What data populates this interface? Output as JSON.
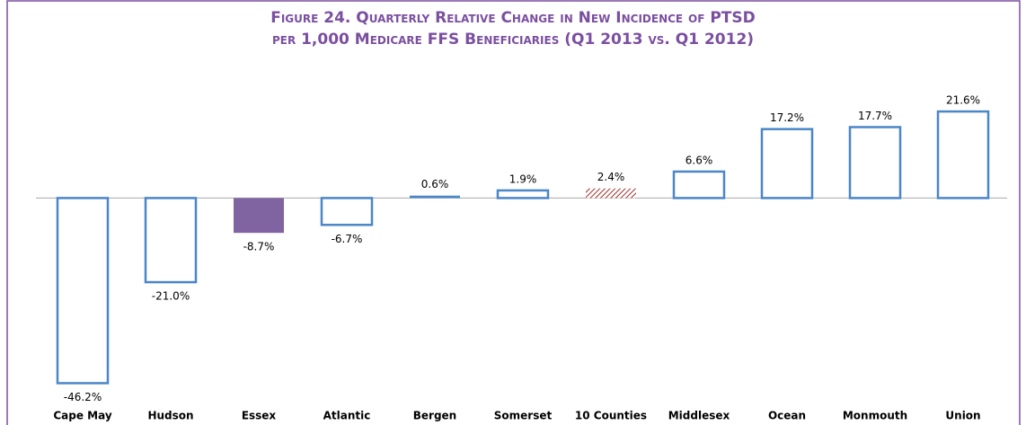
{
  "chart_data": {
    "type": "bar",
    "title": [
      "Figure 24. Quarterly Relative Change in New Incidence of PTSD",
      "per 1,000 Medicare FFS Beneficiaries (Q1 2013 vs. Q1 2012)"
    ],
    "categories": [
      "Cape May",
      "Hudson",
      "Essex",
      "Atlantic",
      "Bergen",
      "Somerset",
      "10 Counties",
      "Middlesex",
      "Ocean",
      "Monmouth",
      "Union"
    ],
    "values": [
      -46.2,
      -21.0,
      -8.7,
      -6.7,
      0.6,
      1.9,
      2.4,
      6.6,
      17.2,
      17.7,
      21.6
    ],
    "value_labels": [
      "-46.2%",
      "-21.0%",
      "-8.7%",
      "-6.7%",
      "0.6%",
      "1.9%",
      "2.4%",
      "6.6%",
      "17.2%",
      "17.7%",
      "21.6%"
    ],
    "colors": [
      "#4a86c8",
      "#4a86c8",
      "#8064a2",
      "#4a86c8",
      "#4a86c8",
      "#4a86c8",
      "#a0302a",
      "#4a86c8",
      "#4a86c8",
      "#4a86c8",
      "#4a86c8"
    ],
    "fills": [
      "outline",
      "outline",
      "solid",
      "outline",
      "solid",
      "outline",
      "hatch",
      "outline",
      "outline",
      "outline",
      "outline"
    ],
    "ylim": [
      -47,
      27
    ]
  }
}
